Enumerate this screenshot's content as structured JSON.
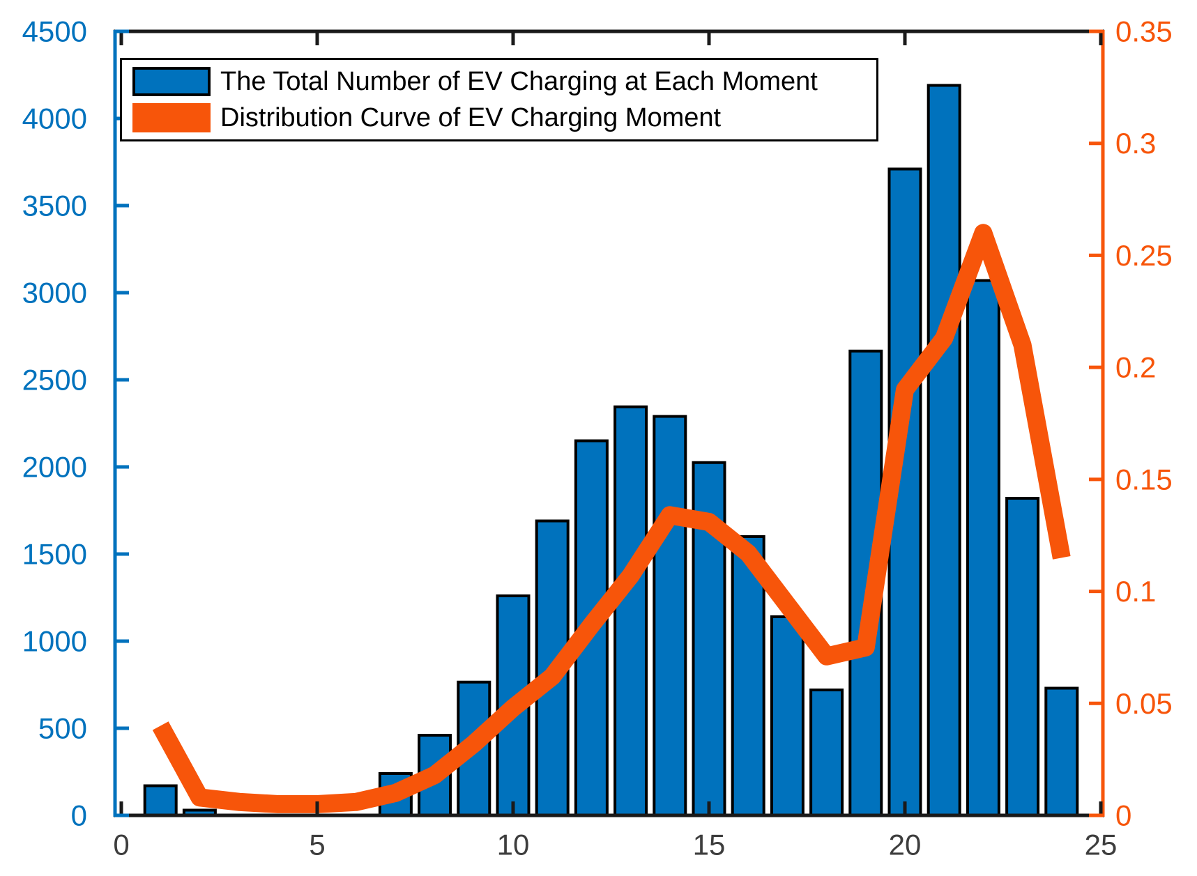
{
  "figure": {
    "background": "#FFFFFF"
  },
  "chart_data": {
    "type": "bar",
    "title": "",
    "grid": false,
    "legend_position": "top-left",
    "categories": [
      1,
      2,
      3,
      4,
      5,
      6,
      7,
      8,
      9,
      10,
      11,
      12,
      13,
      14,
      15,
      16,
      17,
      18,
      19,
      20,
      21,
      22,
      23,
      24
    ],
    "series": [
      {
        "name": "The Total Number of EV Charging at Each Moment",
        "type": "bar",
        "axis": "left",
        "color": "#0072BD",
        "edge_color": "#000000",
        "values": [
          170,
          30,
          0,
          0,
          0,
          0,
          240,
          460,
          765,
          1260,
          1690,
          2150,
          2345,
          2290,
          2025,
          1600,
          1140,
          720,
          2665,
          3710,
          4190,
          3070,
          1820,
          730
        ]
      },
      {
        "name": "Distribution Curve of EV Charging Moment",
        "type": "line",
        "axis": "right",
        "color": "#F7550A",
        "values": [
          0.04,
          0.008,
          0.006,
          0.005,
          0.005,
          0.006,
          0.01,
          0.018,
          0.032,
          0.048,
          0.062,
          0.085,
          0.107,
          0.134,
          0.131,
          0.117,
          0.094,
          0.071,
          0.075,
          0.19,
          0.213,
          0.26,
          0.21,
          0.115
        ]
      }
    ],
    "x_axis": {
      "label": "",
      "lim": [
        -0.16,
        25.05
      ],
      "tick_values": [
        0,
        5,
        10,
        15,
        20,
        25
      ],
      "tick_labels": [
        "0",
        "5",
        "10",
        "15",
        "20",
        "25"
      ],
      "color": "#1A1A1A",
      "label_color": "#3D3D3D"
    },
    "left_axis": {
      "label": "",
      "lim": [
        0,
        4500
      ],
      "tick_values": [
        0,
        500,
        1000,
        1500,
        2000,
        2500,
        3000,
        3500,
        4000,
        4500
      ],
      "tick_labels": [
        "0",
        "500",
        "1000",
        "1500",
        "2000",
        "2500",
        "3000",
        "3500",
        "4000",
        "4500"
      ],
      "color": "#0072BD"
    },
    "right_axis": {
      "label": "",
      "lim": [
        0,
        0.35
      ],
      "tick_values": [
        0,
        0.05,
        0.1,
        0.15,
        0.2,
        0.25,
        0.3,
        0.35
      ],
      "tick_labels": [
        "0",
        "0.05",
        "0.1",
        "0.15",
        "0.2",
        "0.25",
        "0.3",
        "0.35"
      ],
      "color": "#F7550A"
    }
  }
}
